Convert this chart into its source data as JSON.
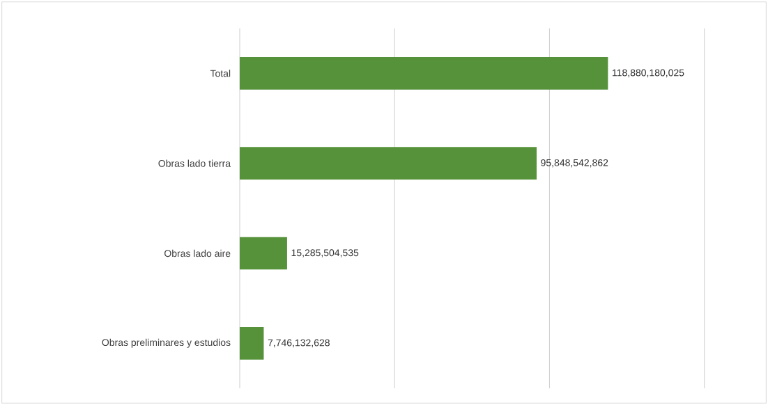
{
  "chart_data": {
    "type": "bar",
    "orientation": "horizontal",
    "categories": [
      "Total",
      "Obras lado tierra",
      "Obras lado aire",
      "Obras preliminares y estudios"
    ],
    "values": [
      118880180025,
      95848542862,
      15285504535,
      7746132628
    ],
    "value_labels": [
      "118,880,180,025",
      "95,848,542,862",
      "15,285,504,535",
      "7,746,132,628"
    ],
    "color": "#55923a",
    "xlim": [
      0,
      150000000000
    ],
    "xticks": [
      {
        "value": 0,
        "label": null
      },
      {
        "value": 50000000000,
        "label": null
      },
      {
        "value": 100000000000,
        "label": null
      },
      {
        "value": 150000000000,
        "label": null
      }
    ],
    "grid": "x",
    "tick_labels": "y"
  }
}
